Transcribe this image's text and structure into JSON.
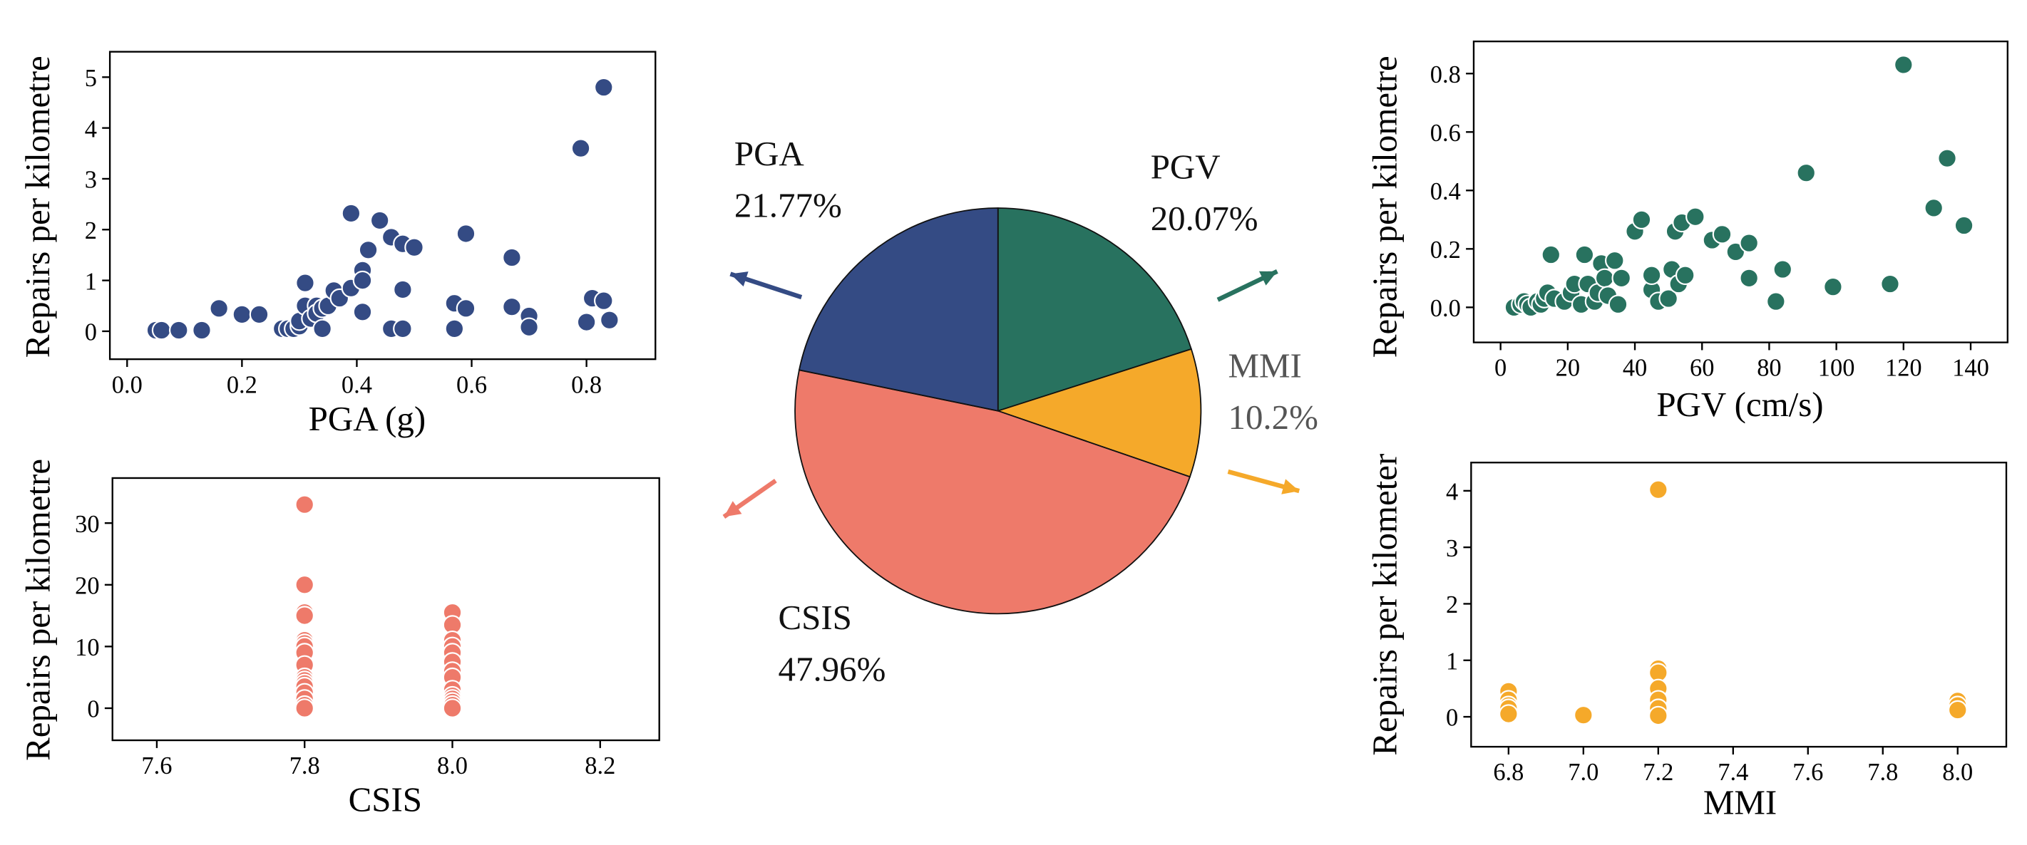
{
  "chart_data": [
    {
      "type": "scatter",
      "x_label": "PGA (g)",
      "y_label": "Repairs per kilometre",
      "color": "#344b84",
      "x": [
        0.05,
        0.06,
        0.09,
        0.13,
        0.16,
        0.2,
        0.23,
        0.27,
        0.28,
        0.29,
        0.3,
        0.3,
        0.31,
        0.31,
        0.32,
        0.33,
        0.33,
        0.34,
        0.34,
        0.35,
        0.36,
        0.37,
        0.39,
        0.39,
        0.41,
        0.41,
        0.41,
        0.42,
        0.44,
        0.46,
        0.46,
        0.48,
        0.48,
        0.48,
        0.5,
        0.57,
        0.57,
        0.59,
        0.59,
        0.67,
        0.67,
        0.7,
        0.7,
        0.79,
        0.8,
        0.81,
        0.83,
        0.83,
        0.84
      ],
      "values": [
        0.02,
        0.02,
        0.02,
        0.02,
        0.45,
        0.33,
        0.33,
        0.05,
        0.05,
        0.05,
        0.1,
        0.2,
        0.95,
        0.5,
        0.25,
        0.5,
        0.35,
        0.05,
        0.45,
        0.5,
        0.8,
        0.65,
        0.85,
        2.32,
        1.2,
        1.0,
        0.38,
        1.6,
        2.18,
        1.85,
        0.05,
        1.72,
        0.82,
        0.05,
        1.65,
        0.55,
        0.05,
        1.92,
        0.45,
        1.45,
        0.48,
        0.3,
        0.08,
        3.6,
        0.18,
        0.65,
        4.8,
        0.6,
        0.22
      ],
      "xlim": [
        -0.03,
        0.92
      ],
      "ylim": [
        -0.55,
        5.5
      ],
      "xticks": [
        {
          "value": 0,
          "label": "0.0"
        },
        0.2,
        0.4,
        0.6,
        0.8
      ],
      "yticks": [
        0,
        1,
        2,
        3,
        4,
        5
      ]
    },
    {
      "type": "scatter",
      "x_label": "PGV (cm/s)",
      "y_label": "Repairs per kilometre",
      "color": "#28725f",
      "x": [
        4,
        6,
        7,
        8,
        9,
        11,
        12,
        13,
        14,
        15,
        16,
        19,
        21,
        22,
        24,
        25,
        26,
        28,
        29,
        30,
        31,
        32,
        34,
        35,
        36,
        40,
        42,
        45,
        45,
        47,
        50,
        51,
        52,
        53,
        54,
        55,
        58,
        63,
        66,
        70,
        74,
        74,
        82,
        84,
        91,
        99,
        116,
        120,
        129,
        133,
        138
      ],
      "values": [
        0,
        0.01,
        0.02,
        0.01,
        0,
        0.02,
        0.01,
        0.03,
        0.05,
        0.18,
        0.03,
        0.02,
        0.05,
        0.08,
        0.01,
        0.18,
        0.08,
        0.02,
        0.05,
        0.15,
        0.1,
        0.04,
        0.16,
        0.01,
        0.1,
        0.26,
        0.3,
        0.06,
        0.11,
        0.02,
        0.03,
        0.13,
        0.26,
        0.08,
        0.29,
        0.11,
        0.31,
        0.23,
        0.25,
        0.19,
        0.1,
        0.22,
        0.02,
        0.13,
        0.46,
        0.07,
        0.08,
        0.83,
        0.34,
        0.51,
        0.28
      ],
      "xlim": [
        -8,
        151
      ],
      "ylim": [
        -0.12,
        0.91
      ],
      "xticks": [
        0,
        20,
        40,
        60,
        80,
        100,
        120,
        140
      ],
      "yticks": [
        {
          "value": 0,
          "label": "0.0"
        },
        0.2,
        0.4,
        0.6,
        0.8
      ]
    },
    {
      "type": "scatter",
      "x_label": "CSIS",
      "y_label": "Repairs per kilometre",
      "color": "#ee7a6a",
      "x": [
        7.8,
        7.8,
        7.8,
        7.8,
        7.8,
        7.8,
        7.8,
        7.8,
        7.8,
        7.8,
        7.8,
        7.8,
        7.8,
        7.8,
        7.8,
        7.8,
        7.8,
        8,
        8,
        8,
        8,
        8,
        8,
        8,
        8,
        8,
        8,
        8,
        8,
        8,
        8
      ],
      "values": [
        33,
        20,
        15.5,
        15,
        11,
        10.5,
        10,
        9,
        7,
        5,
        4.5,
        4,
        3.5,
        2.5,
        1.5,
        0.5,
        0,
        15.5,
        13.5,
        11,
        10,
        9,
        7.5,
        6,
        5,
        3,
        2,
        1.5,
        1,
        0.5,
        0
      ],
      "xlim": [
        7.54,
        8.28
      ],
      "ylim": [
        -5.2,
        37.3
      ],
      "xticks": [
        7.6,
        7.8,
        {
          "value": 8,
          "label": "8.0"
        },
        8.2
      ],
      "yticks": [
        0,
        10,
        20,
        30
      ]
    },
    {
      "type": "scatter",
      "x_label": "MMI",
      "y_label": "Repairs per kilometer",
      "color": "#f5a92a",
      "x": [
        6.8,
        6.8,
        6.8,
        6.8,
        6.8,
        7,
        7.2,
        7.2,
        7.2,
        7.2,
        7.2,
        7.2,
        7.2,
        8,
        8,
        8
      ],
      "values": [
        0.45,
        0.3,
        0.2,
        0.15,
        0.05,
        0.03,
        4.02,
        0.85,
        0.78,
        0.5,
        0.3,
        0.15,
        0.02,
        0.28,
        0.2,
        0.12
      ],
      "xlim": [
        6.7,
        8.13
      ],
      "ylim": [
        -0.53,
        4.5
      ],
      "xticks": [
        6.8,
        {
          "value": 7,
          "label": "7.0"
        },
        7.2,
        7.4,
        7.6,
        7.8,
        {
          "value": 8,
          "label": "8.0"
        }
      ],
      "yticks": [
        0,
        1,
        2,
        3,
        4
      ]
    },
    {
      "type": "pie",
      "categories": [
        "PGV",
        "MMI",
        "CSIS",
        "PGA"
      ],
      "values": [
        20.07,
        10.2,
        47.96,
        21.77
      ],
      "value_labels": [
        "20.07%",
        "10.2%",
        "47.96%",
        "21.77%"
      ],
      "colors": [
        "#28725f",
        "#f5a92a",
        "#ee7a6a",
        "#344b84"
      ]
    }
  ]
}
